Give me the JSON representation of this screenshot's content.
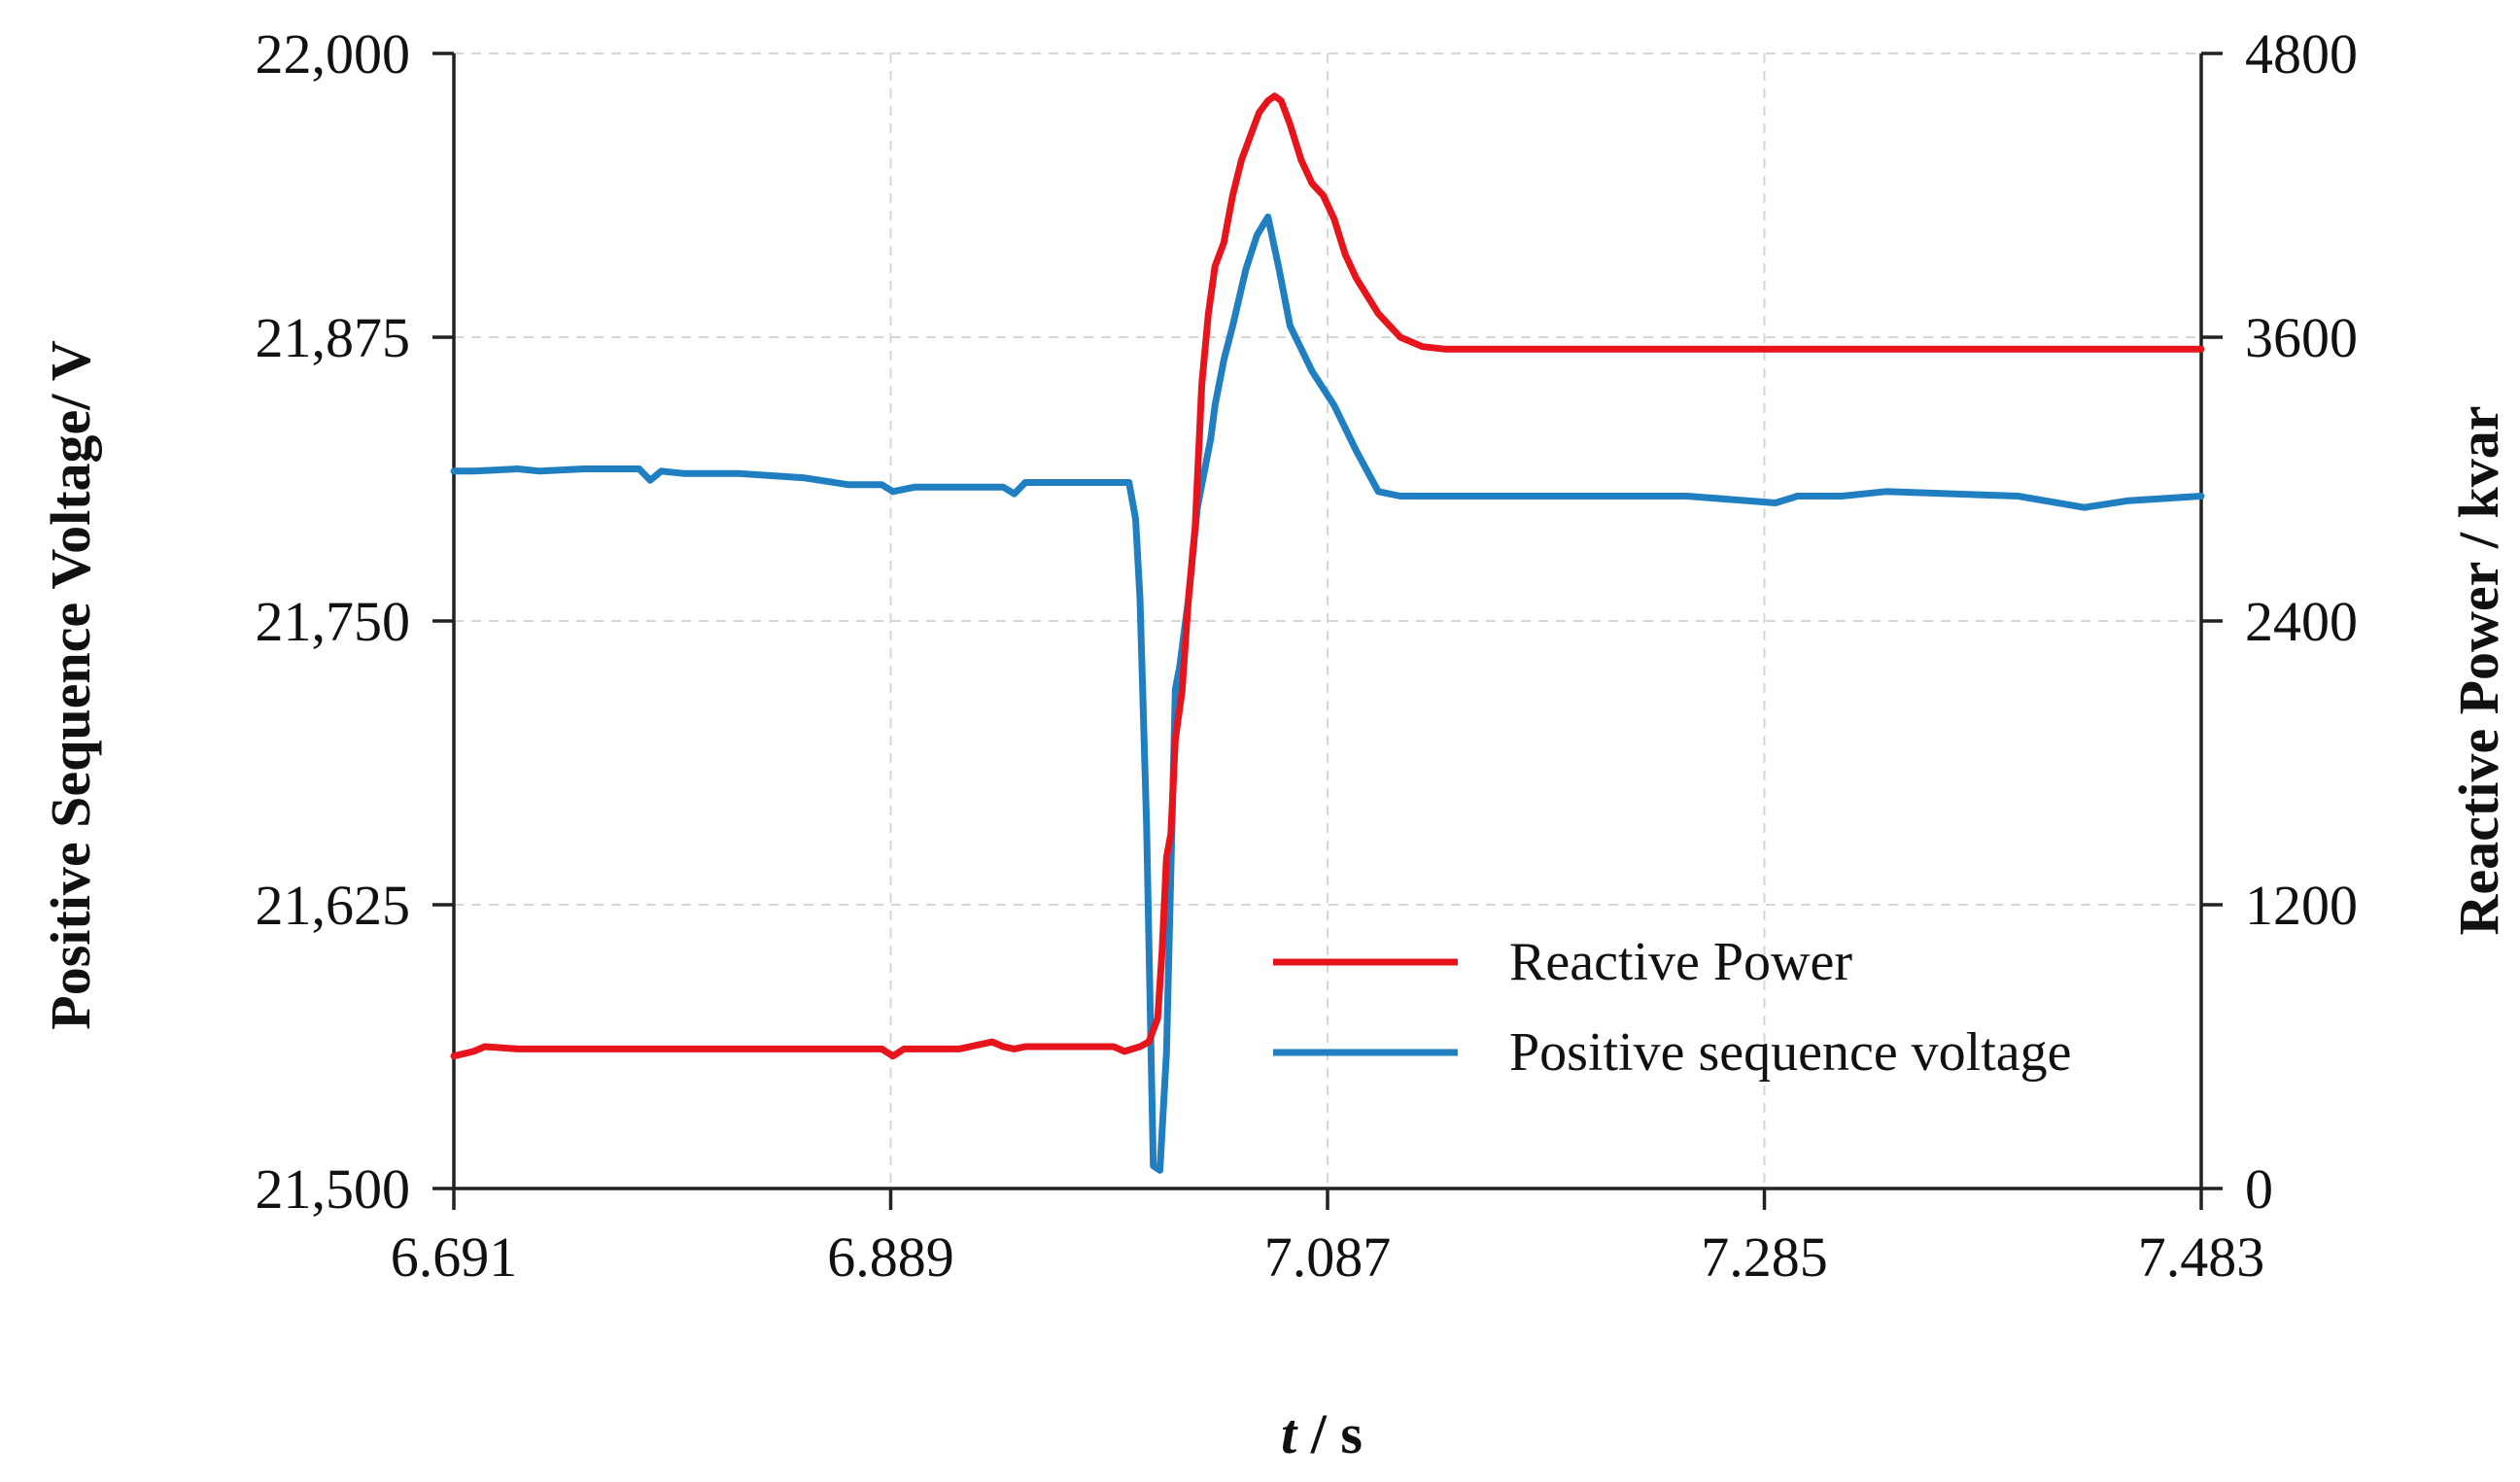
{
  "chart_data": {
    "type": "line",
    "title": "",
    "xlabel_var": "t",
    "xlabel_unit": " / s",
    "ylabel_left": "Positive Sequence Voltage/ V",
    "ylabel_right": "Reactive Power / kvar",
    "xlim": [
      6.691,
      7.483
    ],
    "ylim_left": [
      21500,
      22000
    ],
    "ylim_right": [
      0,
      4800
    ],
    "x_ticks": [
      "6.691",
      "6.889",
      "7.087",
      "7.285",
      "7.483"
    ],
    "y_left_ticks": [
      "21,500",
      "21,625",
      "21,750",
      "21,875",
      "22,000"
    ],
    "y_right_ticks": [
      "0",
      "1200",
      "2400",
      "3600",
      "4800"
    ],
    "grid": true,
    "legend_position": "bottom-right",
    "colors": {
      "reactive": "#e8141c",
      "voltage": "#1f7fc0"
    },
    "series": [
      {
        "name": "Reactive Power",
        "axis": "right",
        "x": [
          6.691,
          6.7,
          6.705,
          6.72,
          6.76,
          6.8,
          6.85,
          6.885,
          6.89,
          6.895,
          6.905,
          6.92,
          6.935,
          6.94,
          6.945,
          6.95,
          6.99,
          6.995,
          7.002,
          7.006,
          7.01,
          7.012,
          7.014,
          7.016,
          7.018,
          7.021,
          7.024,
          7.027,
          7.03,
          7.033,
          7.036,
          7.04,
          7.044,
          7.048,
          7.052,
          7.056,
          7.06,
          7.063,
          7.066,
          7.07,
          7.075,
          7.08,
          7.085,
          7.09,
          7.095,
          7.1,
          7.11,
          7.12,
          7.13,
          7.14,
          7.2,
          7.3,
          7.4,
          7.483
        ],
        "values": [
          560,
          580,
          600,
          590,
          590,
          590,
          590,
          590,
          560,
          590,
          590,
          590,
          620,
          600,
          590,
          600,
          600,
          580,
          600,
          620,
          720,
          1000,
          1400,
          1500,
          1900,
          2100,
          2500,
          2800,
          3400,
          3700,
          3900,
          4000,
          4200,
          4350,
          4450,
          4550,
          4600,
          4620,
          4600,
          4500,
          4350,
          4250,
          4200,
          4100,
          3950,
          3850,
          3700,
          3600,
          3560,
          3550,
          3550,
          3550,
          3550,
          3550
        ]
      },
      {
        "name": "Positive sequence voltage",
        "axis": "left",
        "x": [
          6.691,
          6.7,
          6.72,
          6.73,
          6.75,
          6.775,
          6.78,
          6.785,
          6.795,
          6.82,
          6.85,
          6.87,
          6.885,
          6.89,
          6.9,
          6.94,
          6.945,
          6.95,
          6.985,
          6.997,
          7.0,
          7.002,
          7.005,
          7.008,
          7.011,
          7.014,
          7.016,
          7.018,
          7.02,
          7.024,
          7.028,
          7.032,
          7.034,
          7.036,
          7.04,
          7.044,
          7.05,
          7.055,
          7.06,
          7.065,
          7.07,
          7.075,
          7.08,
          7.09,
          7.1,
          7.11,
          7.12,
          7.13,
          7.15,
          7.2,
          7.25,
          7.29,
          7.3,
          7.32,
          7.34,
          7.4,
          7.43,
          7.45,
          7.483
        ],
        "values": [
          21816,
          21816,
          21817,
          21816,
          21817,
          21817,
          21812,
          21816,
          21815,
          21815,
          21813,
          21810,
          21810,
          21807,
          21809,
          21809,
          21806,
          21811,
          21811,
          21811,
          21795,
          21760,
          21660,
          21510,
          21508,
          21560,
          21640,
          21720,
          21730,
          21760,
          21800,
          21820,
          21830,
          21845,
          21865,
          21880,
          21905,
          21920,
          21928,
          21905,
          21880,
          21870,
          21860,
          21845,
          21825,
          21807,
          21805,
          21805,
          21805,
          21805,
          21805,
          21802,
          21805,
          21805,
          21807,
          21805,
          21800,
          21803,
          21805
        ]
      }
    ]
  }
}
